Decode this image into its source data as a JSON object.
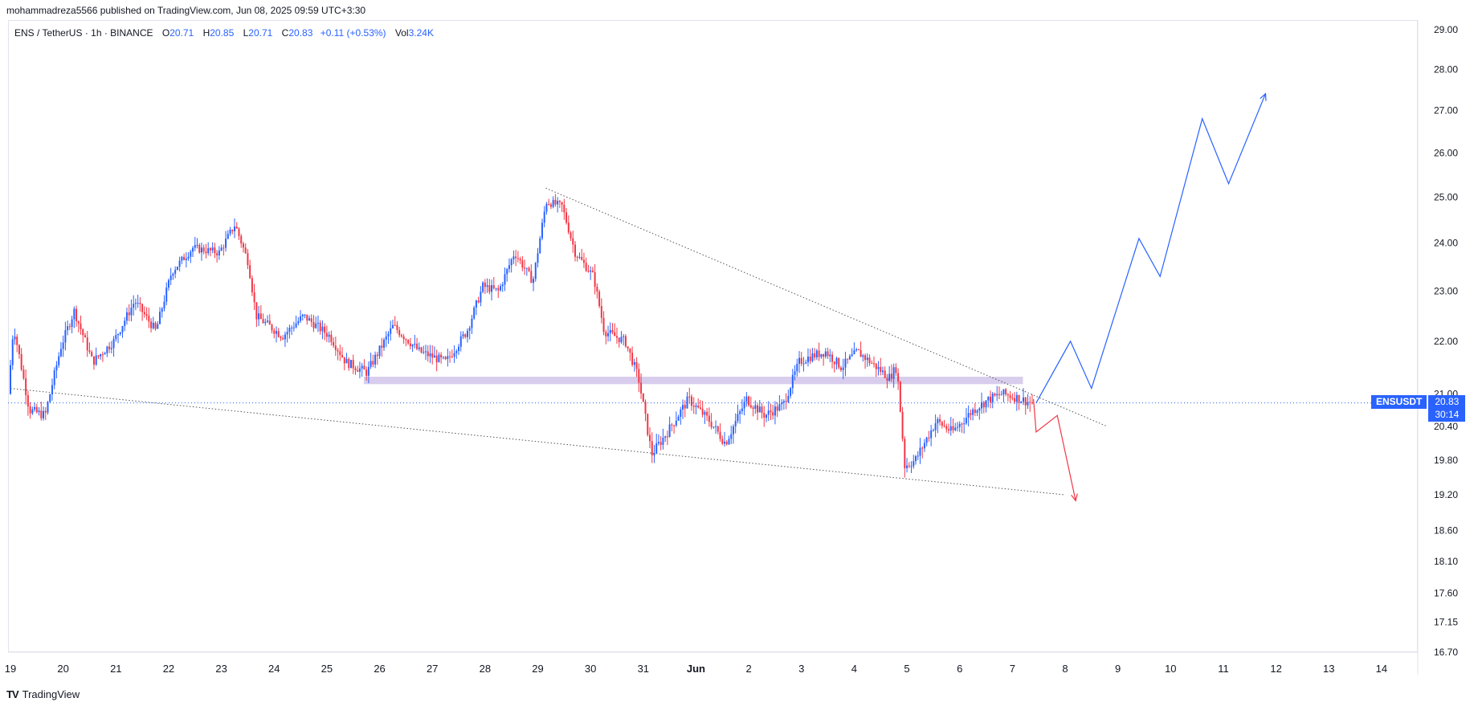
{
  "publish_line": "mohammadreza5566 published on TradingView.com, Jun 08, 2025 09:59 UTC+3:30",
  "legend": {
    "symbol": "ENS / TetherUS · 1h · BINANCE",
    "open_label": "O",
    "open": "20.71",
    "high_label": "H",
    "high": "20.85",
    "low_label": "L",
    "low": "20.71",
    "close_label": "C",
    "close": "20.83",
    "change": "+0.11 (+0.53%)",
    "vol_label": "Vol",
    "vol": "3.24K"
  },
  "price_tag": {
    "symbol": "ENSUSDT",
    "price": "20.83",
    "countdown": "30:14"
  },
  "brand": {
    "logo": "TV",
    "name": "TradingView"
  },
  "colors": {
    "up": "#2962ff",
    "down": "#f23645",
    "zone": "#d1c4e9",
    "forecast_up": "#2962ff",
    "forecast_down": "#f23645",
    "trendline": "#555555"
  },
  "chart_data": {
    "type": "candlestick",
    "y_axis_labels": [
      "29.00",
      "28.00",
      "27.00",
      "26.00",
      "25.00",
      "24.00",
      "23.00",
      "22.00",
      "21.00",
      "20.40",
      "19.80",
      "19.20",
      "18.60",
      "18.10",
      "17.60",
      "17.15",
      "16.70"
    ],
    "x_axis_labels": [
      "19",
      "20",
      "21",
      "22",
      "23",
      "24",
      "25",
      "26",
      "27",
      "28",
      "29",
      "30",
      "31",
      "Jun",
      "2",
      "3",
      "4",
      "5",
      "6",
      "7",
      "8",
      "9",
      "10",
      "11",
      "12",
      "13",
      "14"
    ],
    "scale": "log",
    "price_anchors": [
      {
        "day": 19.0,
        "price": 21.0
      },
      {
        "day": 19.1,
        "price": 22.3
      },
      {
        "day": 19.4,
        "price": 20.7
      },
      {
        "day": 19.7,
        "price": 20.6
      },
      {
        "day": 20.0,
        "price": 21.9
      },
      {
        "day": 20.25,
        "price": 22.6
      },
      {
        "day": 20.6,
        "price": 21.6
      },
      {
        "day": 21.0,
        "price": 22.0
      },
      {
        "day": 21.4,
        "price": 22.8
      },
      {
        "day": 21.8,
        "price": 22.2
      },
      {
        "day": 22.1,
        "price": 23.4
      },
      {
        "day": 22.5,
        "price": 23.9
      },
      {
        "day": 23.0,
        "price": 23.8
      },
      {
        "day": 23.3,
        "price": 24.4
      },
      {
        "day": 23.55,
        "price": 23.6
      },
      {
        "day": 23.7,
        "price": 22.5
      },
      {
        "day": 24.2,
        "price": 22.1
      },
      {
        "day": 24.6,
        "price": 22.5
      },
      {
        "day": 25.1,
        "price": 22.1
      },
      {
        "day": 25.4,
        "price": 21.6
      },
      {
        "day": 25.8,
        "price": 21.4
      },
      {
        "day": 26.3,
        "price": 22.3
      },
      {
        "day": 26.8,
        "price": 21.8
      },
      {
        "day": 27.3,
        "price": 21.6
      },
      {
        "day": 27.7,
        "price": 22.2
      },
      {
        "day": 28.0,
        "price": 23.1
      },
      {
        "day": 28.3,
        "price": 23.0
      },
      {
        "day": 28.6,
        "price": 23.8
      },
      {
        "day": 28.95,
        "price": 23.2
      },
      {
        "day": 29.2,
        "price": 24.9
      },
      {
        "day": 29.5,
        "price": 24.8
      },
      {
        "day": 29.75,
        "price": 23.8
      },
      {
        "day": 30.1,
        "price": 23.3
      },
      {
        "day": 30.3,
        "price": 22.2
      },
      {
        "day": 30.7,
        "price": 22.0
      },
      {
        "day": 30.95,
        "price": 21.3
      },
      {
        "day": 31.2,
        "price": 19.9
      },
      {
        "day": 31.5,
        "price": 20.3
      },
      {
        "day": 31.9,
        "price": 20.9
      },
      {
        "day": 32.3,
        "price": 20.5
      },
      {
        "day": 32.6,
        "price": 20.1
      },
      {
        "day": 33.0,
        "price": 20.9
      },
      {
        "day": 33.35,
        "price": 20.6
      },
      {
        "day": 33.7,
        "price": 20.8
      },
      {
        "day": 34.0,
        "price": 21.6
      },
      {
        "day": 34.2,
        "price": 21.7
      },
      {
        "day": 34.5,
        "price": 21.8
      },
      {
        "day": 34.8,
        "price": 21.5
      },
      {
        "day": 35.1,
        "price": 21.8
      },
      {
        "day": 35.35,
        "price": 21.6
      },
      {
        "day": 35.7,
        "price": 21.3
      },
      {
        "day": 35.85,
        "price": 21.5
      },
      {
        "day": 36.0,
        "price": 19.7
      },
      {
        "day": 36.2,
        "price": 19.8
      },
      {
        "day": 36.6,
        "price": 20.5
      },
      {
        "day": 36.9,
        "price": 20.3
      },
      {
        "day": 37.3,
        "price": 20.7
      },
      {
        "day": 37.6,
        "price": 20.9
      },
      {
        "day": 37.85,
        "price": 21.0
      },
      {
        "day": 38.05,
        "price": 20.95
      },
      {
        "day": 38.4,
        "price": 20.83
      }
    ],
    "resistance_zone": {
      "day_start": 25.7,
      "day_end": 38.2,
      "price_low": 21.18,
      "price_high": 21.32
    },
    "current_price": 20.83,
    "trendlines": [
      {
        "name": "upper",
        "start": {
          "day": 29.15,
          "price": 25.2
        },
        "end": {
          "day": 39.8,
          "price": 20.4
        }
      },
      {
        "name": "lower",
        "start": {
          "day": 19.0,
          "price": 21.1
        },
        "end": {
          "day": 39.0,
          "price": 19.2
        }
      }
    ],
    "forecast_up": [
      {
        "day": 38.45,
        "price": 20.83
      },
      {
        "day": 39.1,
        "price": 22.0
      },
      {
        "day": 39.5,
        "price": 21.1
      },
      {
        "day": 40.4,
        "price": 24.1
      },
      {
        "day": 40.8,
        "price": 23.3
      },
      {
        "day": 41.6,
        "price": 26.8
      },
      {
        "day": 42.1,
        "price": 25.3
      },
      {
        "day": 42.8,
        "price": 27.4
      }
    ],
    "forecast_down": [
      {
        "day": 38.4,
        "price": 20.9
      },
      {
        "day": 38.45,
        "price": 20.3
      },
      {
        "day": 38.85,
        "price": 20.6
      },
      {
        "day": 39.2,
        "price": 19.1
      }
    ]
  }
}
